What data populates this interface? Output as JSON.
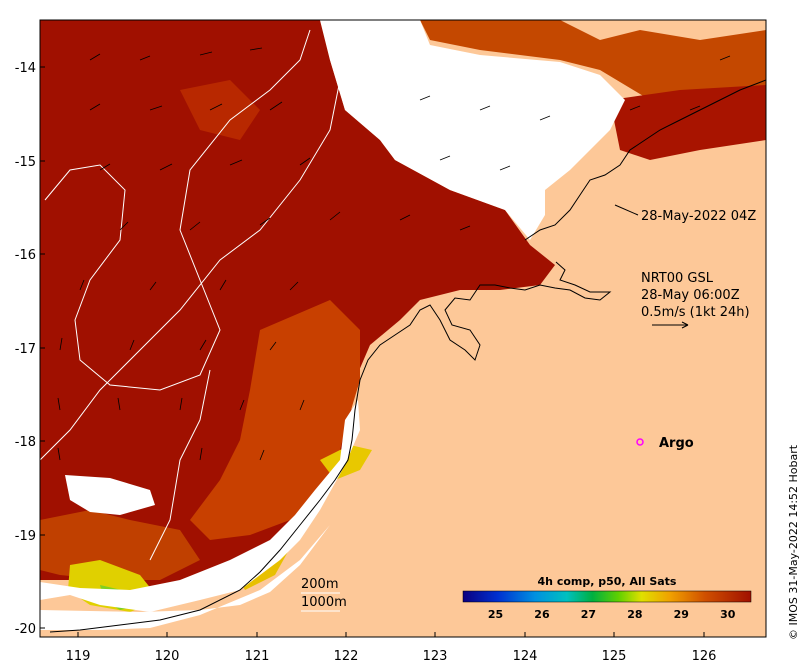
{
  "map": {
    "x_axis": {
      "ticks": [
        "119",
        "120",
        "121",
        "122",
        "123",
        "124",
        "125",
        "126"
      ]
    },
    "y_axis": {
      "ticks": [
        "-14",
        "-15",
        "-16",
        "-17",
        "-18",
        "-19",
        "-20"
      ]
    },
    "annotations": {
      "timestamp": "28-May-2022 04Z",
      "current_model": "NRT00 GSL",
      "current_time": "28-May 06:00Z",
      "current_scale": "0.5m/s (1kt 24h)",
      "argo_label": "Argo"
    },
    "contours": {
      "shallow": "200m",
      "deep": "1000m"
    },
    "colorbar": {
      "title": "4h comp, p50, All Sats",
      "ticks": [
        "25",
        "26",
        "27",
        "28",
        "29",
        "30"
      ],
      "min": 24.3,
      "max": 30.5
    },
    "credit": "© IMOS 31-May-2022 14:52 Hobart",
    "colors": {
      "sst_hot": "#a01000",
      "sst_warm": "#c84000",
      "land": "#fdc898",
      "cloud": "#ffffff",
      "argo": "#ff00ff"
    }
  }
}
